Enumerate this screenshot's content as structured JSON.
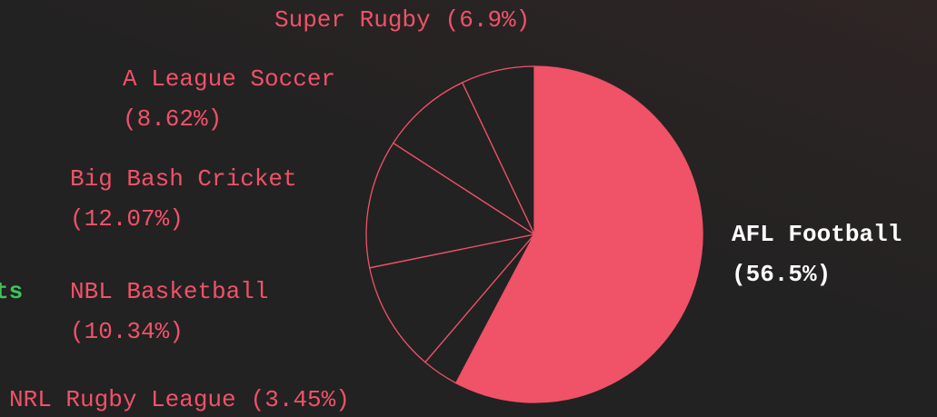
{
  "chart_data": {
    "type": "pie",
    "annotation": "ts",
    "categories": [
      "AFL Football",
      "NRL Rugby League",
      "NBL Basketball",
      "Big Bash Cricket",
      "A League Soccer",
      "Super Rugby"
    ],
    "values": [
      56.5,
      3.45,
      10.34,
      12.07,
      8.62,
      6.9
    ],
    "value_labels": [
      "(56.5%)",
      "(3.45%)",
      "(10.34%)",
      "(12.07%)",
      "(8.62%)",
      "(6.9%)"
    ],
    "colors": [
      "#f05268",
      "#222222",
      "#222222",
      "#222222",
      "#222222",
      "#222222"
    ],
    "color": "#f05268"
  }
}
